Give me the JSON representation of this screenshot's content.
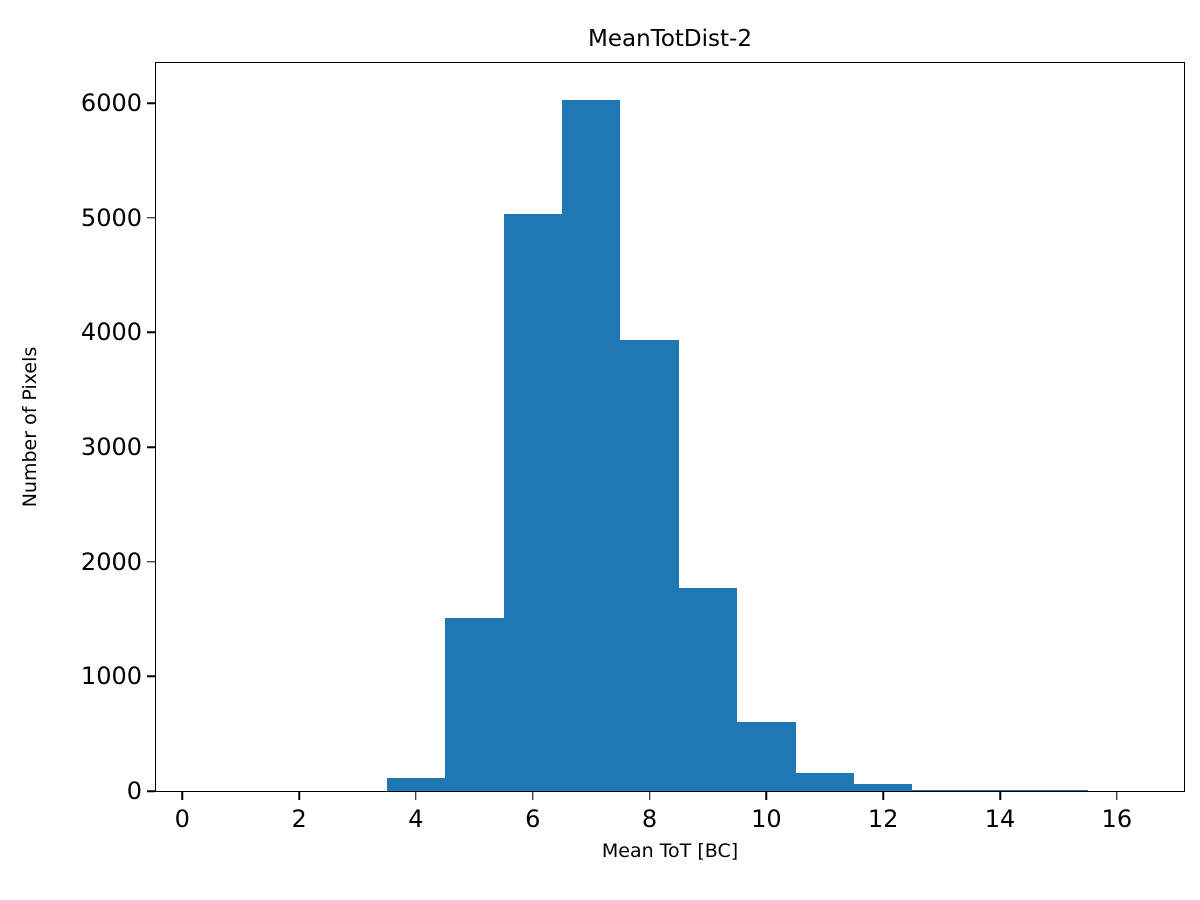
{
  "chart_data": {
    "type": "bar",
    "subtype": "histogram",
    "title": "MeanTotDist-2",
    "xlabel": "Mean ToT [BC]",
    "ylabel": "Number of Pixels",
    "bar_color": "#1f77b4",
    "bin_width": 1,
    "bins_start": [
      3.5,
      4.5,
      5.5,
      6.5,
      7.5,
      8.5,
      9.5,
      10.5,
      11.5,
      12.5,
      13.5,
      14.5
    ],
    "counts": [
      110,
      1510,
      5030,
      6030,
      3930,
      1770,
      600,
      160,
      60,
      12,
      8,
      8
    ],
    "xlim": [
      -0.45,
      17.15
    ],
    "ylim": [
      0,
      6350
    ],
    "xticks": [
      0,
      2,
      4,
      6,
      8,
      10,
      12,
      14,
      16
    ],
    "yticks": [
      0,
      1000,
      2000,
      3000,
      4000,
      5000,
      6000
    ],
    "grid": false,
    "legend": null
  }
}
